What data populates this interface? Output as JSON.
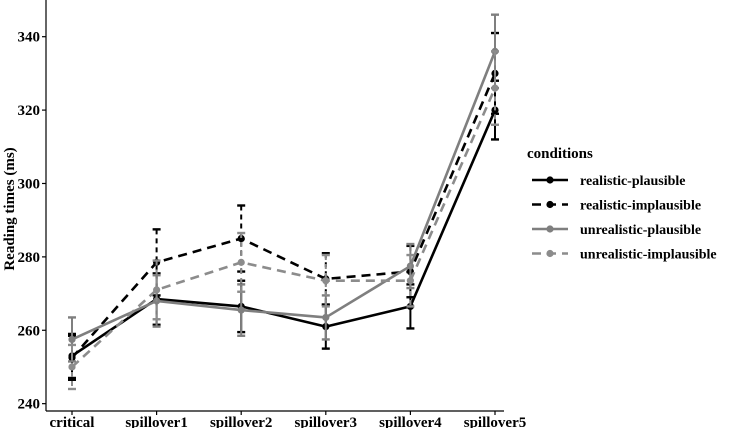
{
  "chart_data": {
    "type": "line",
    "title": "",
    "xlabel": "",
    "ylabel": "Reading times (ms)",
    "ylim": [
      238,
      350
    ],
    "yticks": [
      240,
      260,
      280,
      300,
      320,
      340
    ],
    "grid": false,
    "legend_title": "conditions",
    "legend_position": "right",
    "categories": [
      "critical",
      "spillover1",
      "spillover2",
      "spillover3",
      "spillover4",
      "spillover5"
    ],
    "series": [
      {
        "name": "realistic-plausible",
        "color": "#000000",
        "dashed": false,
        "values": [
          253,
          268.5,
          266.5,
          261,
          266.5,
          320
        ],
        "errors": [
          6,
          7,
          7,
          6,
          6,
          8
        ]
      },
      {
        "name": "realistic-implausible",
        "color": "#000000",
        "dashed": true,
        "values": [
          252.5,
          278.5,
          285,
          274,
          276,
          330
        ],
        "errors": [
          6,
          9,
          9,
          7,
          7,
          11
        ]
      },
      {
        "name": "unrealistic-plausible",
        "color": "#7f7f7f",
        "dashed": false,
        "values": [
          257.5,
          268,
          265.5,
          263.5,
          277.5,
          336
        ],
        "errors": [
          6,
          7,
          7,
          6,
          6,
          10
        ]
      },
      {
        "name": "unrealistic-implausible",
        "color": "#8c8c8c",
        "dashed": true,
        "values": [
          250,
          271,
          278.5,
          273.5,
          273.5,
          326
        ],
        "errors": [
          6,
          8,
          8,
          7,
          7,
          10
        ]
      }
    ]
  }
}
